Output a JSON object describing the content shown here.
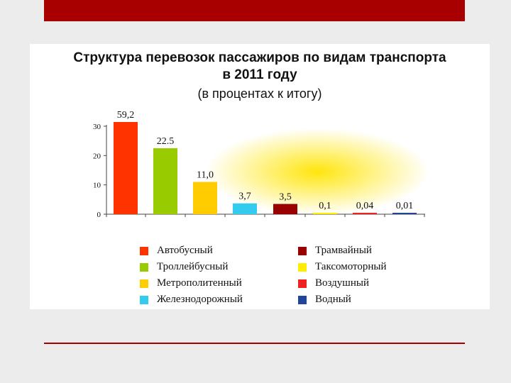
{
  "slide": {
    "title_line1": "Структура перевозок пассажиров по видам транспорта",
    "title_line2": "в 2011 году",
    "subtitle": "(в процентах к итогу)"
  },
  "chart_data": {
    "type": "bar",
    "categories": [
      "Автобусный",
      "Троллейбусный",
      "Метрополитенный",
      "Железнодорожный",
      "Трамвайный",
      "Таксомоторный",
      "Воздушный",
      "Водный"
    ],
    "values": [
      59.2,
      22.5,
      11.0,
      3.7,
      3.5,
      0.1,
      0.04,
      0.01
    ],
    "data_labels": [
      "59,2",
      "22.5",
      "11,0",
      "3,7",
      "3,5",
      "0,1",
      "0,04",
      "0,01"
    ],
    "colors": [
      "#ff3300",
      "#99cc00",
      "#ffcc00",
      "#33ccee",
      "#990000",
      "#ffee00",
      "#ee2222",
      "#224499"
    ],
    "yticks": [
      "0",
      "10",
      "20",
      "30"
    ],
    "ylim": [
      0,
      30
    ],
    "axis_break": true,
    "legend_position": "bottom",
    "grid": false
  }
}
